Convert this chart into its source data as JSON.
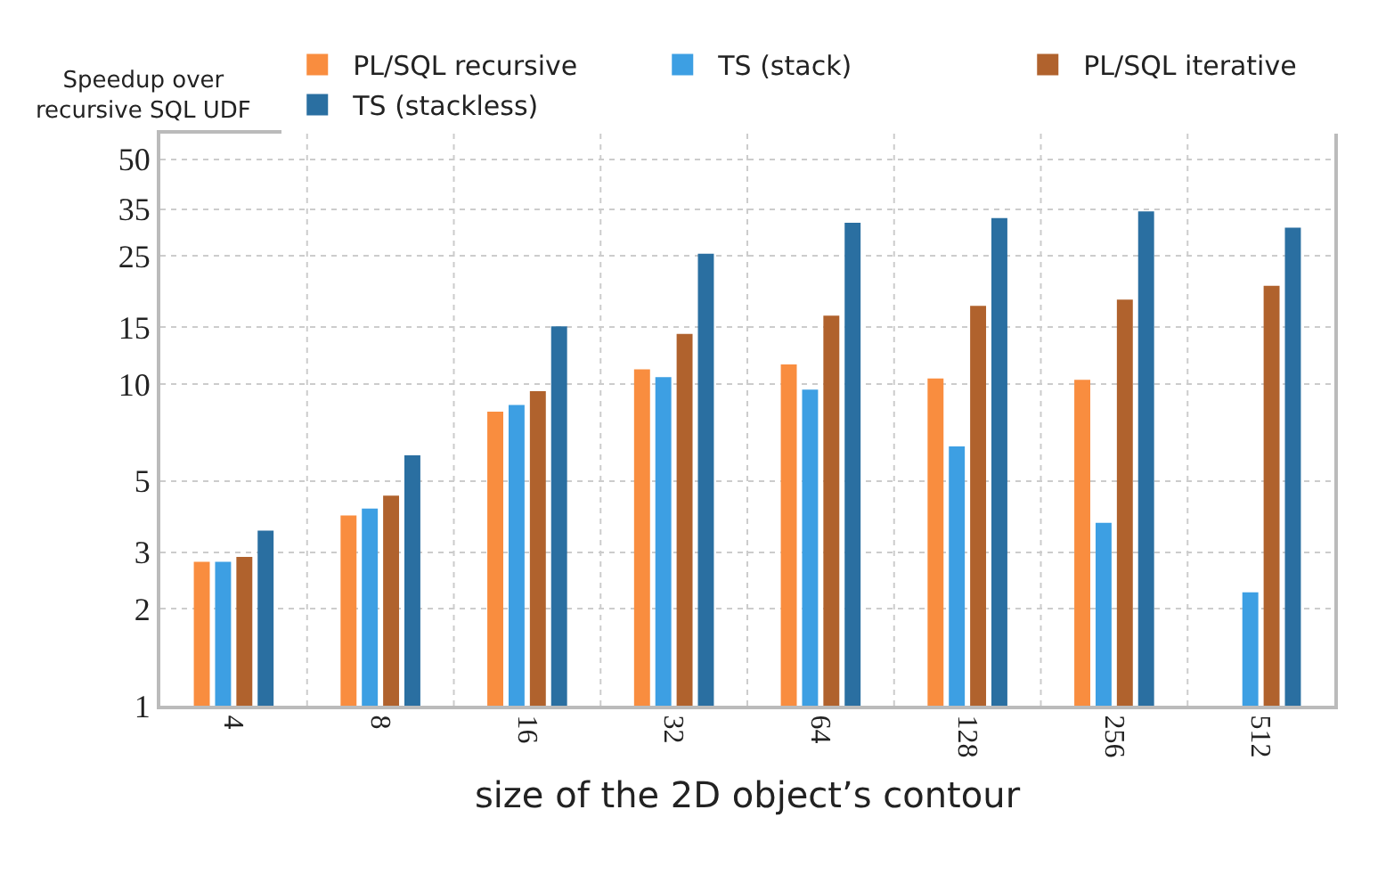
{
  "chart_data": {
    "type": "bar",
    "xlabel": "size of the 2D object’s contour",
    "ylabel": "Speedup over\nrecursive SQL UDF",
    "categories": [
      "4",
      "8",
      "16",
      "32",
      "64",
      "128",
      "256",
      "512"
    ],
    "series": [
      {
        "name": "PL/SQL recursive",
        "color": "#f98d3f",
        "values": [
          2.8,
          3.9,
          8.2,
          11.1,
          11.5,
          10.4,
          10.3,
          null
        ]
      },
      {
        "name": "TS (stack)",
        "color": "#3d9fe3",
        "values": [
          2.8,
          4.1,
          8.6,
          10.5,
          9.6,
          6.4,
          3.7,
          2.25
        ]
      },
      {
        "name": "PL/SQL iterative",
        "color": "#b0622d",
        "values": [
          2.9,
          4.5,
          9.5,
          14.3,
          16.3,
          17.5,
          18.3,
          20.2
        ]
      },
      {
        "name": "TS (stackless)",
        "color": "#2a6fa1",
        "values": [
          3.5,
          6.0,
          15.1,
          25.4,
          31.7,
          32.8,
          34.4,
          30.6
        ]
      }
    ],
    "log": "y",
    "ylim": [
      1,
      60
    ],
    "yticks": [
      1,
      2,
      3,
      5,
      10,
      15,
      25,
      35,
      50
    ],
    "grid": true,
    "legend": "top"
  }
}
